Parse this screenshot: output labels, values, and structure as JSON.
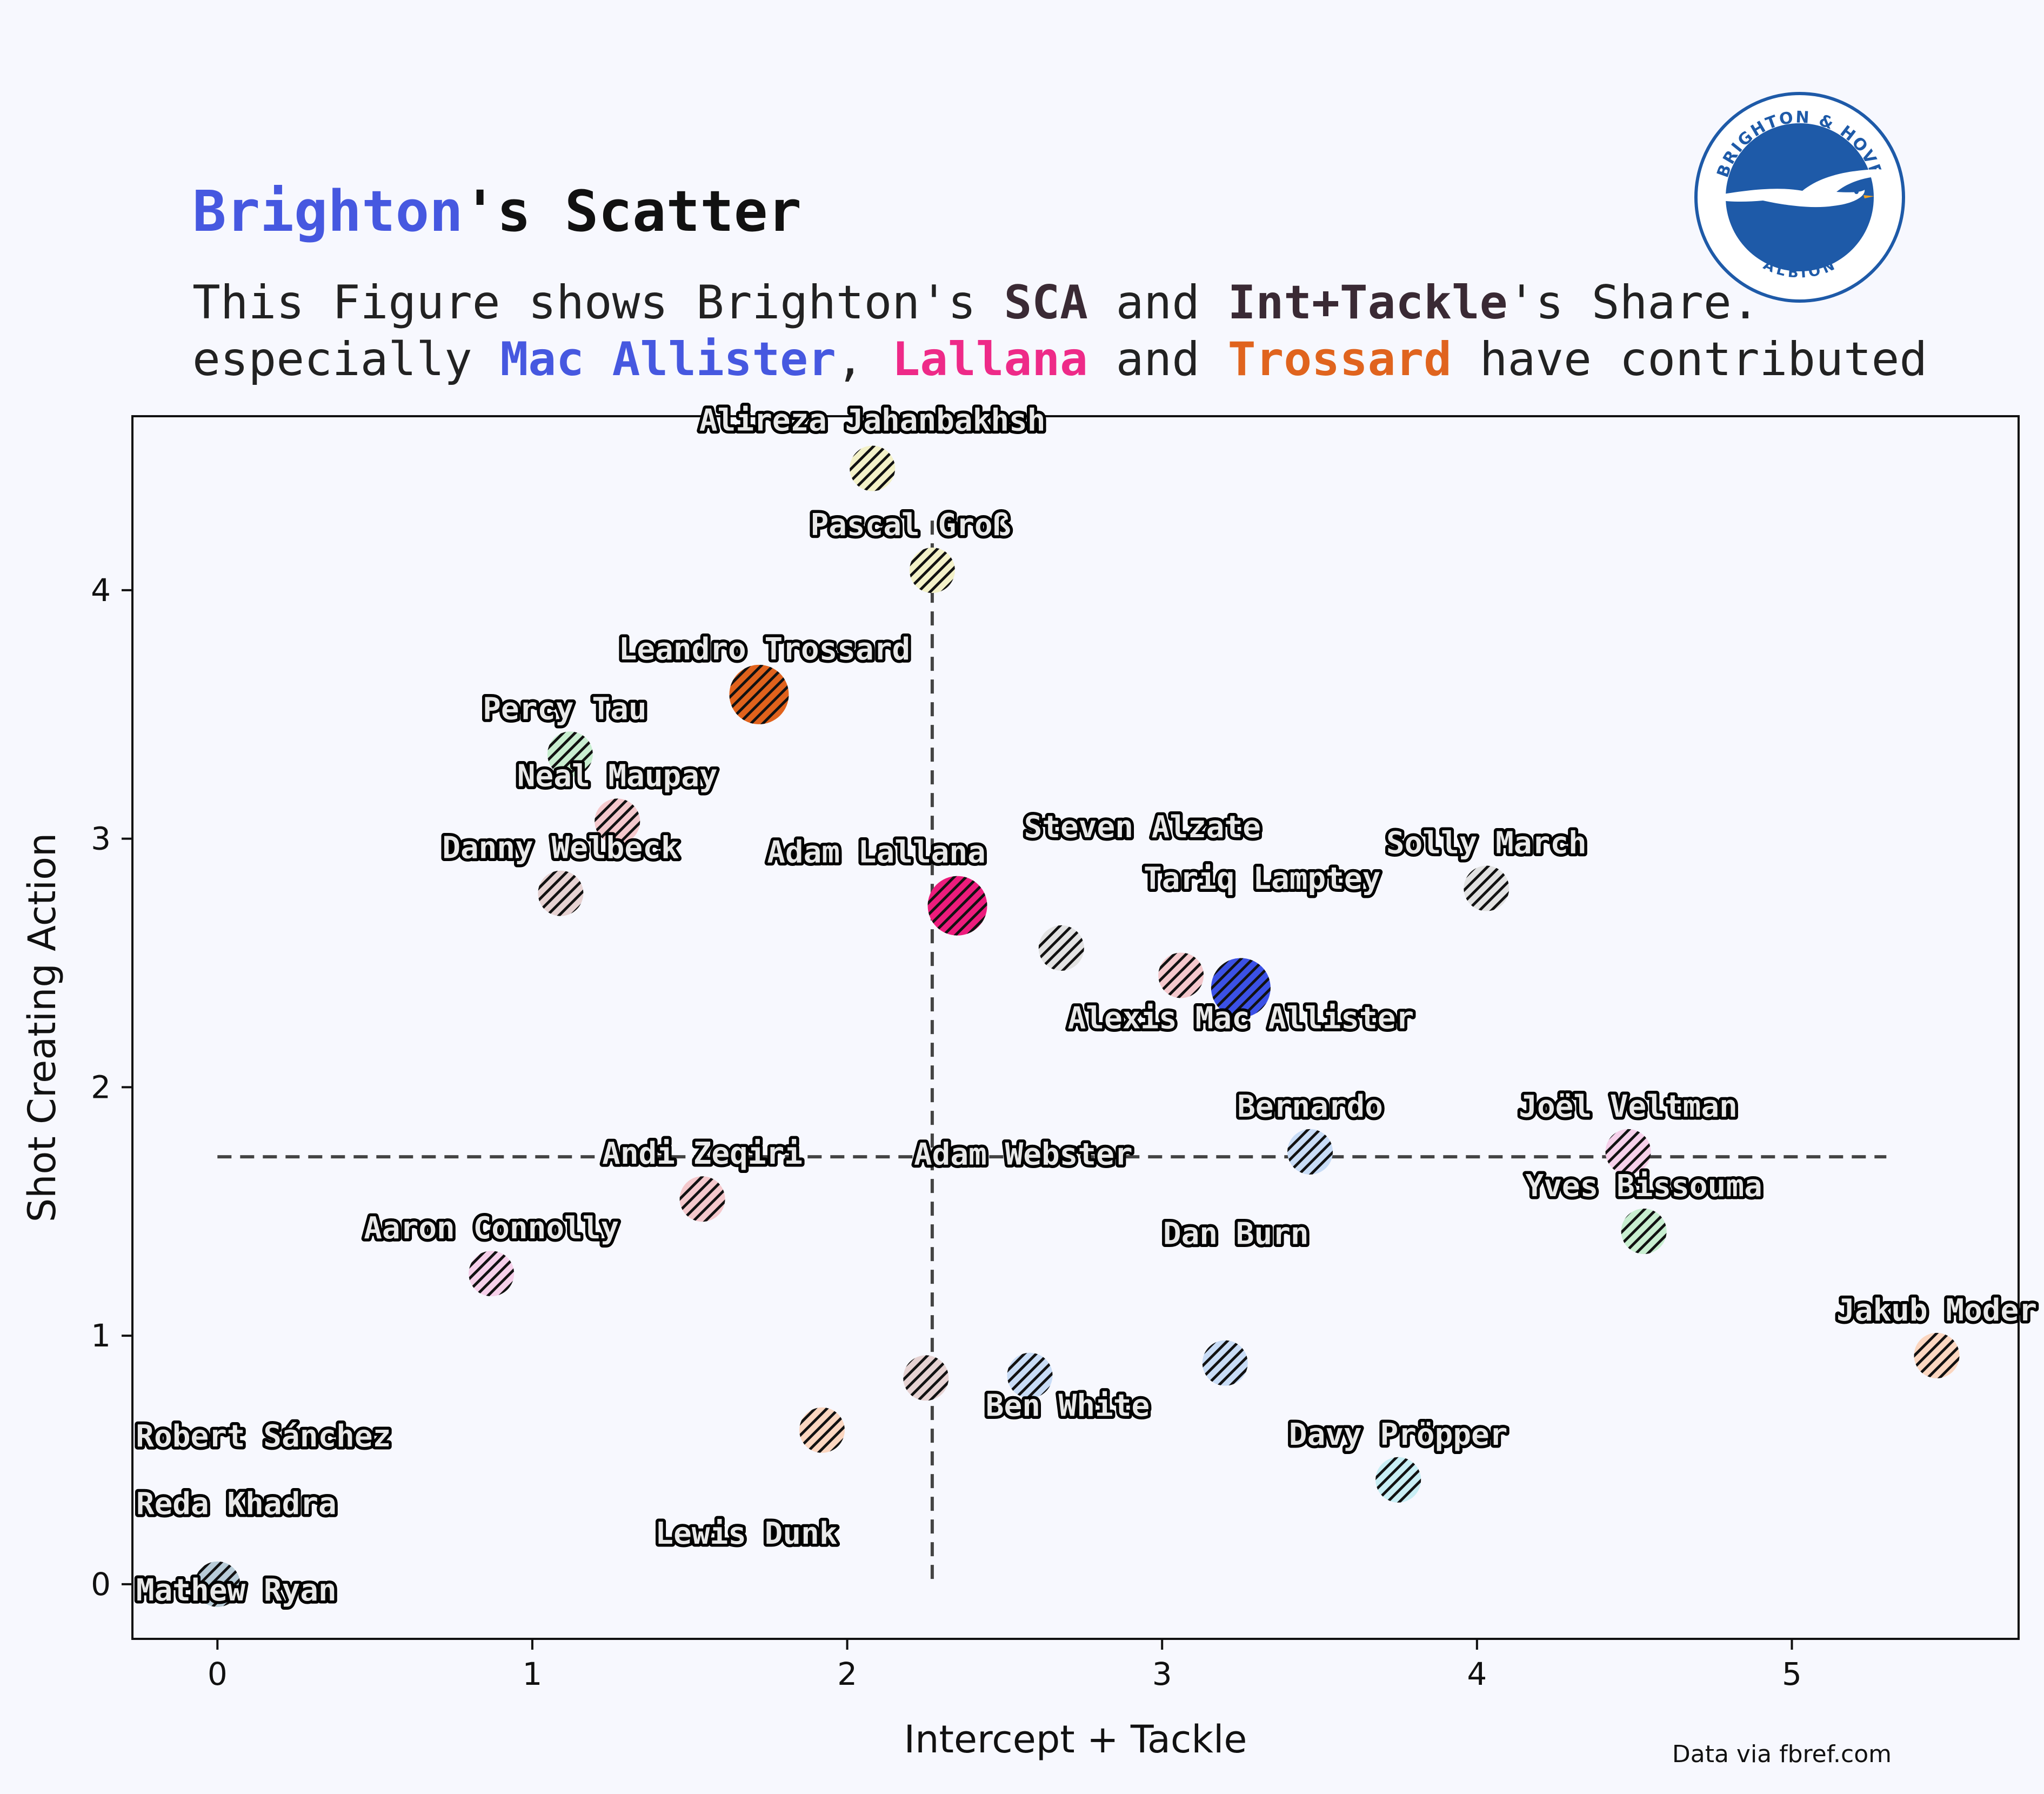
{
  "title": {
    "team": "Brighton",
    "rest": "'s Scatter"
  },
  "subtitle": {
    "line1": {
      "p1": "This Figure shows Brighton's ",
      "b1": "SCA",
      "p2": " and ",
      "b2": "Int+Tackle",
      "p3": "'s Share."
    },
    "line2": {
      "p1": "especially ",
      "n1": "Mac Allister",
      "p2": ", ",
      "n2": "Lallana",
      "p3": " and ",
      "n3": "Trossard",
      "p4": " have contributed"
    }
  },
  "source": "Data via fbref.com",
  "badge": {
    "top_text": "BRIGHTON & HOVE",
    "bottom_text": "ALBION",
    "color": "#1e5aa8"
  },
  "colors": {
    "background": "#f7f8fe",
    "mac_allister": "#3b51e6",
    "lallana": "#ec1c7c",
    "trossard": "#e0621c"
  },
  "chart_data": {
    "type": "scatter",
    "xlabel": "Intercept + Tackle",
    "ylabel": "Shot Creating Action",
    "xlim": [
      -0.27,
      5.72
    ],
    "ylim": [
      -0.22,
      4.7
    ],
    "xticks": [
      0,
      1,
      2,
      3,
      4,
      5
    ],
    "yticks": [
      0,
      1,
      2,
      3,
      4
    ],
    "mean_lines": {
      "x": 2.27,
      "y": 1.72
    },
    "marker_pattern": "diagonal hatch",
    "points": [
      {
        "name": "Alireza Jahanbakhsh",
        "x": 2.08,
        "y": 4.49,
        "color": "#f3f1c8",
        "size": "small"
      },
      {
        "name": "Pascal Groß",
        "x": 2.27,
        "y": 4.08,
        "color": "#f3f1c8",
        "size": "small"
      },
      {
        "name": "Leandro Trossard",
        "x": 1.72,
        "y": 3.58,
        "color": "#e0621c",
        "size": "large"
      },
      {
        "name": "Percy Tau",
        "x": 1.12,
        "y": 3.34,
        "color": "#c8eed0",
        "size": "small"
      },
      {
        "name": "Neal Maupay",
        "x": 1.27,
        "y": 3.07,
        "color": "#f4c8cc",
        "size": "small"
      },
      {
        "name": "Danny Welbeck",
        "x": 1.09,
        "y": 2.78,
        "color": "#e6d2d2",
        "size": "small"
      },
      {
        "name": "Adam Lallana",
        "x": 2.35,
        "y": 2.73,
        "color": "#ec1c7c",
        "size": "large"
      },
      {
        "name": "Steven Alzate",
        "x": 2.68,
        "y": 2.56,
        "color": "#e2e2e2",
        "size": "small"
      },
      {
        "name": "Tariq Lamptey",
        "x": 3.06,
        "y": 2.45,
        "color": "#f4c8cc",
        "size": "small"
      },
      {
        "name": "Alexis Mac Allister",
        "x": 3.25,
        "y": 2.4,
        "color": "#3b51e6",
        "size": "large"
      },
      {
        "name": "Solly March",
        "x": 4.03,
        "y": 2.8,
        "color": "#e2e2e2",
        "size": "small"
      },
      {
        "name": "Bernardo",
        "x": 3.47,
        "y": 1.74,
        "color": "#c8dcf6",
        "size": "small"
      },
      {
        "name": "Joël Veltman",
        "x": 4.48,
        "y": 1.74,
        "color": "#f6d0ea",
        "size": "small"
      },
      {
        "name": "Yves Bissouma",
        "x": 4.53,
        "y": 1.42,
        "color": "#c8eed0",
        "size": "small"
      },
      {
        "name": "Andi Zeqiri",
        "x": 1.54,
        "y": 1.55,
        "color": "#f4c8cc",
        "size": "small"
      },
      {
        "name": "Adam Webster",
        "x": 2.25,
        "y": 0.83,
        "color": "#e6d2d2",
        "size": "small"
      },
      {
        "name": "Aaron Connolly",
        "x": 0.87,
        "y": 1.25,
        "color": "#f6d0ea",
        "size": "small"
      },
      {
        "name": "Dan Burn",
        "x": 3.2,
        "y": 0.89,
        "color": "#c8dcf6",
        "size": "small"
      },
      {
        "name": "Jakub Moder",
        "x": 5.46,
        "y": 0.92,
        "color": "#fbd6c0",
        "size": "small"
      },
      {
        "name": "Ben White",
        "x": 2.58,
        "y": 0.84,
        "color": "#c8dcf6",
        "size": "small"
      },
      {
        "name": "Lewis Dunk",
        "x": 1.92,
        "y": 0.62,
        "color": "#fbd6c0",
        "size": "small"
      },
      {
        "name": "Davy Pröpper",
        "x": 3.75,
        "y": 0.42,
        "color": "#c8eef4",
        "size": "small"
      },
      {
        "name": "Robert Sánchez",
        "x": 0.0,
        "y": 0.0,
        "color": "#bfdcf0",
        "size": "small"
      },
      {
        "name": "Reda Khadra",
        "x": 0.0,
        "y": 0.0,
        "color": "#c8eed0",
        "size": "small"
      },
      {
        "name": "Mathew Ryan",
        "x": 0.0,
        "y": 0.0,
        "color": "#b8ccd8",
        "size": "small"
      }
    ]
  }
}
